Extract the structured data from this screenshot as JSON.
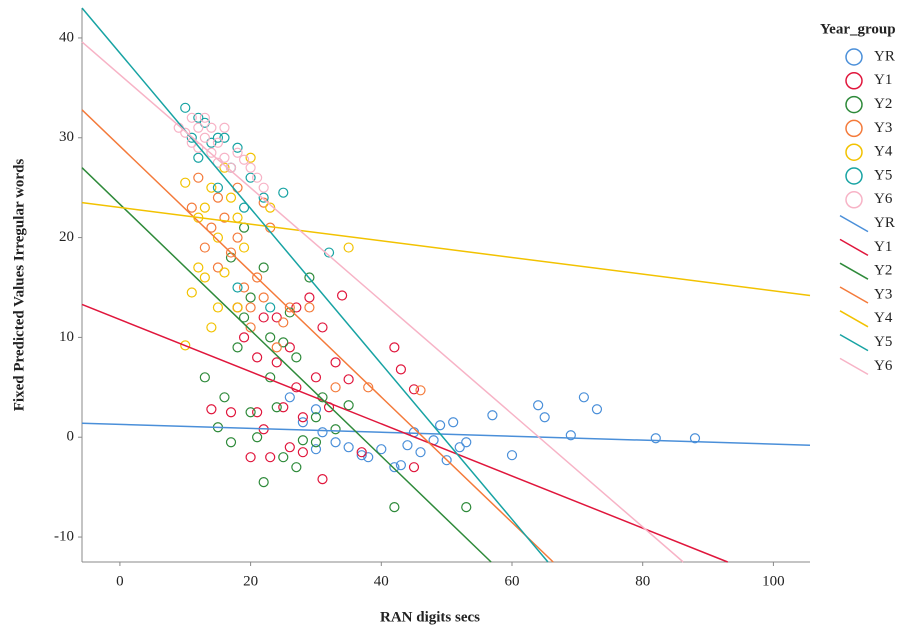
{
  "chart_data": {
    "type": "scatter",
    "xlabel": "RAN digits secs",
    "ylabel": "Fixed Predicted Values Irregular words",
    "legend_title": "Year_group",
    "legend": "right",
    "grid": false,
    "xlim": [
      -5.8,
      105.6
    ],
    "ylim": [
      -12.5,
      43
    ],
    "xticks": [
      0,
      20,
      40,
      60,
      80,
      100
    ],
    "yticks": [
      -10,
      0,
      10,
      20,
      30,
      40
    ],
    "series": [
      {
        "name": "YR",
        "type": "scatter",
        "color": "#4a8fd9",
        "x": [
          30,
          31,
          33,
          35,
          37,
          38,
          40,
          42,
          43,
          44,
          45,
          46,
          48,
          49,
          50,
          51,
          52,
          53,
          57,
          60,
          64,
          65,
          69,
          71,
          73,
          82,
          88,
          26,
          28,
          30
        ],
        "values": [
          2.8,
          0.5,
          -0.5,
          -1,
          -1.8,
          -2,
          -1.2,
          -3,
          -2.8,
          -0.8,
          0.5,
          -1.5,
          -0.3,
          1.2,
          -2.3,
          1.5,
          -1,
          -0.5,
          2.2,
          -1.8,
          3.2,
          2,
          0.2,
          4,
          2.8,
          -0.1,
          -0.1,
          4,
          1.5,
          -1.2
        ]
      },
      {
        "name": "Y1",
        "type": "scatter",
        "color": "#e0163c",
        "x": [
          14,
          17,
          19,
          20,
          21,
          22,
          22,
          23,
          24,
          25,
          26,
          26,
          27,
          28,
          28,
          29,
          30,
          31,
          31,
          32,
          33,
          34,
          35,
          37,
          42,
          43,
          45,
          45,
          18,
          21,
          24,
          27
        ],
        "values": [
          2.8,
          2.5,
          10,
          -2,
          8,
          0.8,
          12,
          -2,
          7.5,
          3,
          9,
          -1,
          5,
          2,
          -1.5,
          14,
          6,
          -4.2,
          11,
          3,
          7.5,
          14.2,
          5.8,
          -1.5,
          9,
          6.8,
          4.8,
          -3,
          13,
          2.5,
          12,
          13
        ]
      },
      {
        "name": "Y2",
        "type": "scatter",
        "color": "#2e8a3a",
        "x": [
          13,
          15,
          16,
          17,
          18,
          19,
          20,
          21,
          22,
          23,
          24,
          25,
          25,
          26,
          27,
          28,
          29,
          30,
          31,
          33,
          35,
          42,
          53,
          17,
          19,
          20,
          22,
          23,
          27,
          30
        ],
        "values": [
          6,
          1,
          4,
          -0.5,
          9,
          12,
          14,
          0,
          -4.5,
          6,
          3,
          9.5,
          -2,
          12.5,
          8,
          -0.3,
          16,
          2,
          4,
          0.8,
          3.2,
          -7,
          -7,
          18,
          21,
          2.5,
          17,
          10,
          -3,
          -0.5
        ]
      },
      {
        "name": "Y3",
        "type": "scatter",
        "color": "#f47a3a",
        "x": [
          11,
          13,
          14,
          15,
          16,
          17,
          18,
          19,
          20,
          21,
          22,
          23,
          24,
          25,
          26,
          29,
          33,
          38,
          46,
          12,
          15,
          18,
          20,
          22
        ],
        "values": [
          23,
          19,
          21,
          17,
          22,
          18.5,
          20,
          15,
          13,
          16,
          23.5,
          21,
          9,
          11.5,
          13,
          13,
          5,
          5,
          4.7,
          26,
          24,
          25,
          11,
          14
        ]
      },
      {
        "name": "Y4",
        "type": "scatter",
        "color": "#f2c200",
        "x": [
          10,
          11,
          12,
          12,
          13,
          14,
          14,
          15,
          16,
          16,
          17,
          18,
          18,
          19,
          20,
          10,
          35,
          23,
          13,
          15
        ],
        "values": [
          25.5,
          14.5,
          17,
          22,
          23,
          25,
          11,
          20,
          16.5,
          27,
          24,
          22,
          13,
          19,
          28,
          9.2,
          19,
          23,
          16,
          13
        ]
      },
      {
        "name": "Y5",
        "type": "scatter",
        "color": "#17a3a3",
        "x": [
          10,
          11,
          12,
          13,
          14,
          15,
          16,
          17,
          18,
          19,
          20,
          22,
          23,
          25,
          32,
          18,
          15,
          12
        ],
        "values": [
          33,
          30,
          28,
          31.5,
          29.5,
          25,
          30,
          27,
          29,
          23,
          26,
          24,
          13,
          24.5,
          18.5,
          15,
          30,
          32
        ]
      },
      {
        "name": "Y6",
        "type": "scatter",
        "color": "#f7b3c6",
        "x": [
          9,
          10,
          11,
          11,
          12,
          13,
          13,
          14,
          15,
          16,
          16,
          17,
          18,
          19,
          20,
          21,
          22,
          12,
          14,
          15
        ],
        "values": [
          31,
          30.5,
          32,
          29.5,
          31,
          30,
          32,
          28.5,
          29.5,
          28,
          31,
          27,
          28.5,
          27.8,
          27,
          26,
          25,
          29,
          31,
          27.5
        ]
      },
      {
        "name": "YR",
        "type": "line",
        "color": "#4a8fd9",
        "x": [
          -5.8,
          105.6
        ],
        "values": [
          1.4,
          -0.8
        ]
      },
      {
        "name": "Y1",
        "type": "line",
        "color": "#e0163c",
        "x": [
          -5.8,
          93
        ],
        "values": [
          13.3,
          -12.5
        ]
      },
      {
        "name": "Y2",
        "type": "line",
        "color": "#2e8a3a",
        "x": [
          -5.8,
          56.8
        ],
        "values": [
          27,
          -12.5
        ]
      },
      {
        "name": "Y3",
        "type": "line",
        "color": "#f47a3a",
        "x": [
          -5.8,
          66.3
        ],
        "values": [
          32.8,
          -12.5
        ]
      },
      {
        "name": "Y4",
        "type": "line",
        "color": "#f2c200",
        "x": [
          -5.8,
          105.6
        ],
        "values": [
          23.5,
          14.2
        ]
      },
      {
        "name": "Y5",
        "type": "line",
        "color": "#17a3a3",
        "x": [
          -5.8,
          65.5
        ],
        "values": [
          43,
          -12.5
        ]
      },
      {
        "name": "Y6",
        "type": "line",
        "color": "#f7b3c6",
        "x": [
          -5.8,
          86.2
        ],
        "values": [
          39.6,
          -12.5
        ]
      }
    ]
  }
}
